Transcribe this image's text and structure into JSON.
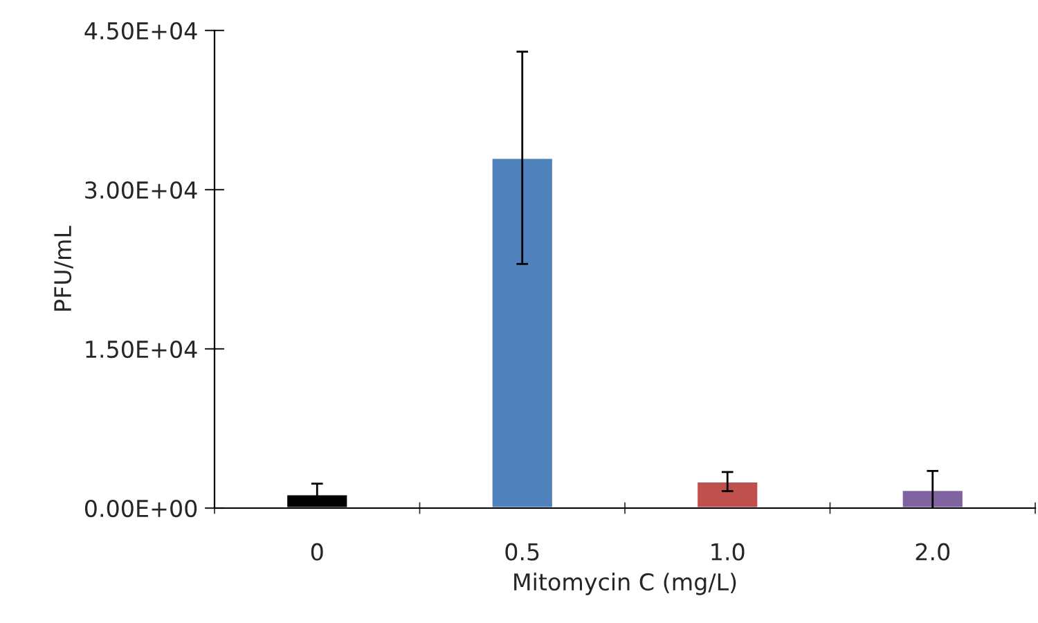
{
  "chart_data": {
    "type": "bar",
    "xlabel": "Mitomycin C (mg/L)",
    "ylabel": "PFU/mL",
    "categories": [
      "0",
      "0.5",
      "1.0",
      "2.0"
    ],
    "values": [
      1300,
      33000,
      2500,
      1700
    ],
    "errors": [
      1000,
      10000,
      900,
      1800
    ],
    "colors": [
      "#000000",
      "#4f81bd",
      "#c0504d",
      "#8064a2"
    ],
    "ylim": [
      0,
      45000
    ],
    "yticks": [
      {
        "value": 0,
        "label": "0.00E+00"
      },
      {
        "value": 15000,
        "label": "1.50E+04"
      },
      {
        "value": 30000,
        "label": "3.00E+04"
      },
      {
        "value": 45000,
        "label": "4.50E+04"
      }
    ],
    "grid": false,
    "legend": false
  }
}
